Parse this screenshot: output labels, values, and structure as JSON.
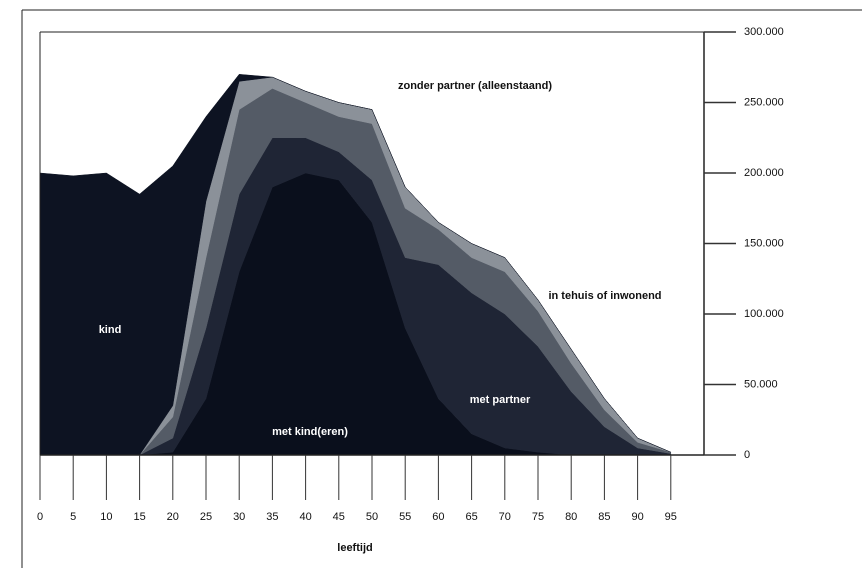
{
  "chart_data": {
    "type": "stacked-area",
    "x_label": "leeftijd",
    "x": [
      0,
      5,
      10,
      15,
      20,
      25,
      30,
      35,
      40,
      45,
      50,
      55,
      60,
      65,
      70,
      75,
      80,
      85,
      90,
      95
    ],
    "xlim": [
      0,
      100
    ],
    "xticks": [
      0,
      5,
      10,
      15,
      20,
      25,
      30,
      35,
      40,
      45,
      50,
      55,
      60,
      65,
      70,
      75,
      80,
      85,
      90,
      95
    ],
    "ylim": [
      0,
      300000
    ],
    "yticks": [
      0,
      {
        "value": 50000,
        "label": "50.000"
      },
      {
        "value": 100000,
        "label": "100.000"
      },
      {
        "value": 150000,
        "label": "150.000"
      },
      {
        "value": 200000,
        "label": "200.000"
      },
      {
        "value": 250000,
        "label": "250.000"
      },
      {
        "value": 300000,
        "label": "300.000"
      }
    ],
    "series": [
      {
        "name": "met kind(eren)",
        "color": "#0a0f1c",
        "values": [
          0,
          0,
          0,
          0,
          2000,
          40000,
          130000,
          190000,
          200000,
          195000,
          165000,
          90000,
          40000,
          15000,
          5000,
          2000,
          0,
          0,
          0,
          0
        ]
      },
      {
        "name": "met partner",
        "color": "#1f2535",
        "values": [
          0,
          0,
          0,
          0,
          10000,
          50000,
          55000,
          35000,
          25000,
          20000,
          30000,
          50000,
          95000,
          100000,
          95000,
          75000,
          45000,
          20000,
          5000,
          1000
        ]
      },
      {
        "name": "zonder partner (alleenstaand)",
        "color": "#545b66",
        "values": [
          0,
          0,
          0,
          0,
          15000,
          50000,
          60000,
          35000,
          25000,
          25000,
          40000,
          35000,
          25000,
          25000,
          30000,
          25000,
          20000,
          12000,
          4000,
          1000
        ]
      },
      {
        "name": "in tehuis of inwonend",
        "color": "#8b9199",
        "values": [
          0,
          0,
          0,
          0,
          8000,
          40000,
          20000,
          8000,
          8000,
          10000,
          10000,
          15000,
          5000,
          10000,
          10000,
          8000,
          10000,
          8000,
          3000,
          0
        ]
      },
      {
        "name": "kind",
        "color": "#0d1322",
        "values": [
          200000,
          198000,
          200000,
          185000,
          170000,
          60000,
          5000,
          0,
          0,
          0,
          0,
          0,
          0,
          0,
          0,
          0,
          0,
          0,
          0,
          0
        ]
      }
    ]
  }
}
